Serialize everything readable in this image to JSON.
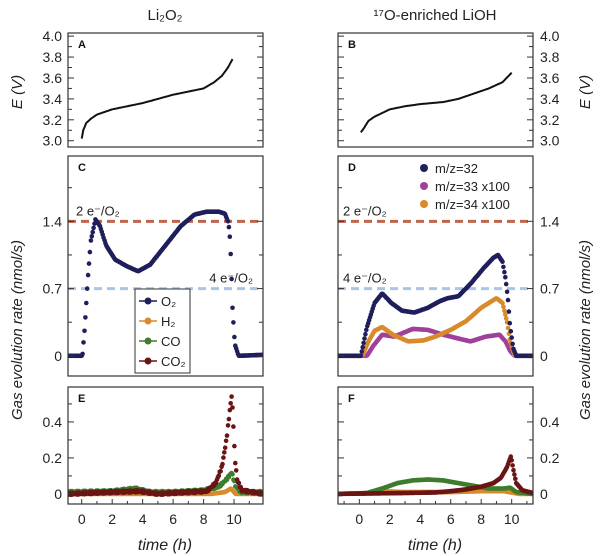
{
  "figure": {
    "titles": [
      "Li₂O₂",
      "¹⁷O-enriched LiOH"
    ],
    "ylabel_potential": "E (V)",
    "ylabel_gas": "Gas evolution rate (nmol/s)",
    "xlabel": "time (h)",
    "xticks": [
      "0",
      "2",
      "4",
      "6",
      "8",
      "10"
    ]
  },
  "chart_data": [
    {
      "id": "A",
      "panel_label": "A",
      "type": "line",
      "ylabel": "E (V)",
      "ylim": [
        2.94,
        4.03
      ],
      "xlim": [
        -0.9,
        11.9
      ],
      "yticks": [
        "3.0",
        "3.2",
        "3.4",
        "3.6",
        "3.8",
        "4.0"
      ],
      "series": [
        {
          "name": "E",
          "color": "#111111",
          "points": [
            [
              0,
              3.02
            ],
            [
              0.1,
              3.1
            ],
            [
              0.3,
              3.17
            ],
            [
              0.6,
              3.21
            ],
            [
              1,
              3.25
            ],
            [
              2,
              3.3
            ],
            [
              3,
              3.33
            ],
            [
              4,
              3.36
            ],
            [
              5,
              3.4
            ],
            [
              6,
              3.44
            ],
            [
              7,
              3.47
            ],
            [
              8,
              3.5
            ],
            [
              8.7,
              3.56
            ],
            [
              9.2,
              3.62
            ],
            [
              9.6,
              3.7
            ],
            [
              9.9,
              3.78
            ]
          ]
        }
      ]
    },
    {
      "id": "B",
      "panel_label": "B",
      "type": "line",
      "ylabel": "E (V)",
      "ylim": [
        2.94,
        4.03
      ],
      "xlim": [
        -1.4,
        11.4
      ],
      "yticks": [
        "3.0",
        "3.2",
        "3.4",
        "3.6",
        "3.8",
        "4.0"
      ],
      "series": [
        {
          "name": "E",
          "color": "#111111",
          "points": [
            [
              0.1,
              3.08
            ],
            [
              0.3,
              3.12
            ],
            [
              0.6,
              3.19
            ],
            [
              1,
              3.23
            ],
            [
              2,
              3.3
            ],
            [
              3,
              3.33
            ],
            [
              4,
              3.35
            ],
            [
              5.5,
              3.37
            ],
            [
              6.5,
              3.4
            ],
            [
              7.5,
              3.45
            ],
            [
              8.5,
              3.5
            ],
            [
              9.4,
              3.56
            ],
            [
              10,
              3.65
            ]
          ]
        }
      ]
    },
    {
      "id": "C",
      "panel_label": "C",
      "type": "scatter",
      "ylabel": "Gas evolution rate (nmol/s)",
      "ylim": [
        -0.21,
        2.08
      ],
      "xlim": [
        -0.9,
        11.9
      ],
      "yticks": [
        "0",
        "0.7",
        "1.4"
      ],
      "minor_step": 0.35,
      "hlines": [
        {
          "label": "2 e⁻/O₂",
          "value": 1.4,
          "color": "#c0644c"
        },
        {
          "label": "4 e⁻/O₂",
          "value": 0.7,
          "color": "#a9c6e6"
        }
      ],
      "legend": {
        "placement": "bottom-center",
        "style": "line-marker",
        "entries": [
          {
            "label": "O₂",
            "color": "#1f1f5c"
          },
          {
            "label": "H₂",
            "color": "#d98a2b"
          },
          {
            "label": "CO",
            "color": "#3d7d2c"
          },
          {
            "label": "CO₂",
            "color": "#6b1414"
          }
        ]
      },
      "series": [
        {
          "name": "O₂",
          "color": "#1f1f5c",
          "points": [
            [
              -0.9,
              0.0
            ],
            [
              0.05,
              0.0
            ],
            [
              0.2,
              0.3
            ],
            [
              0.4,
              0.8
            ],
            [
              0.6,
              1.2
            ],
            [
              0.9,
              1.42
            ],
            [
              1.2,
              1.35
            ],
            [
              1.6,
              1.15
            ],
            [
              2.2,
              1.0
            ],
            [
              3,
              0.93
            ],
            [
              3.7,
              0.88
            ],
            [
              4.5,
              0.95
            ],
            [
              5.5,
              1.15
            ],
            [
              6.5,
              1.35
            ],
            [
              7.4,
              1.47
            ],
            [
              8.2,
              1.5
            ],
            [
              9,
              1.5
            ],
            [
              9.4,
              1.48
            ],
            [
              9.6,
              1.4
            ],
            [
              9.7,
              1.3
            ],
            [
              9.8,
              1.0
            ],
            [
              9.9,
              0.5
            ],
            [
              10.05,
              0.12
            ],
            [
              10.3,
              0.0
            ],
            [
              11.9,
              0.01
            ]
          ]
        }
      ]
    },
    {
      "id": "D",
      "panel_label": "D",
      "type": "scatter",
      "ylabel": "Gas evolution rate (nmol/s)",
      "ylim": [
        -0.21,
        2.08
      ],
      "xlim": [
        -1.4,
        11.4
      ],
      "yticks": [
        "0",
        "0.7",
        "1.4"
      ],
      "minor_step": 0.35,
      "hlines": [
        {
          "label": "2 e⁻/O₂",
          "value": 1.4,
          "color": "#c0644c"
        },
        {
          "label": "4 e⁻/O₂",
          "value": 0.7,
          "color": "#a9c6e6"
        }
      ],
      "legend": {
        "placement": "top-center",
        "style": "marker",
        "entries": [
          {
            "label": "m/z=32",
            "color": "#1f1f5c"
          },
          {
            "label": "m/z=33 x100",
            "color": "#a1409b"
          },
          {
            "label": "m/z=34 x100",
            "color": "#d98a2b"
          }
        ]
      },
      "series": [
        {
          "name": "m/z=33 x100",
          "color": "#a1409b",
          "points": [
            [
              -1.4,
              0.0
            ],
            [
              0.5,
              0.0
            ],
            [
              0.9,
              0.1
            ],
            [
              1.5,
              0.22
            ],
            [
              2.3,
              0.2
            ],
            [
              3.5,
              0.28
            ],
            [
              4.5,
              0.27
            ],
            [
              5.5,
              0.22
            ],
            [
              6.5,
              0.18
            ],
            [
              7.3,
              0.15
            ],
            [
              8.3,
              0.2
            ],
            [
              9.2,
              0.22
            ],
            [
              9.6,
              0.15
            ],
            [
              9.9,
              0.05
            ],
            [
              10.2,
              0.0
            ],
            [
              11.4,
              0.0
            ]
          ]
        },
        {
          "name": "m/z=34 x100",
          "color": "#d98a2b",
          "points": [
            [
              -1.4,
              0.0
            ],
            [
              0.2,
              0.0
            ],
            [
              0.6,
              0.15
            ],
            [
              1.0,
              0.26
            ],
            [
              1.5,
              0.3
            ],
            [
              2.2,
              0.22
            ],
            [
              3.2,
              0.15
            ],
            [
              4.2,
              0.16
            ],
            [
              5,
              0.2
            ],
            [
              6,
              0.27
            ],
            [
              7,
              0.36
            ],
            [
              8,
              0.5
            ],
            [
              9,
              0.6
            ],
            [
              9.4,
              0.55
            ],
            [
              9.7,
              0.35
            ],
            [
              9.9,
              0.15
            ],
            [
              10.2,
              0.0
            ],
            [
              11.4,
              0.0
            ]
          ]
        },
        {
          "name": "m/z=32",
          "color": "#1f1f5c",
          "points": [
            [
              -1.4,
              0.0
            ],
            [
              0.1,
              0.0
            ],
            [
              0.5,
              0.3
            ],
            [
              1.0,
              0.55
            ],
            [
              1.5,
              0.65
            ],
            [
              2.1,
              0.55
            ],
            [
              2.8,
              0.47
            ],
            [
              3.6,
              0.45
            ],
            [
              4.5,
              0.5
            ],
            [
              5.3,
              0.57
            ],
            [
              5.8,
              0.6
            ],
            [
              6.5,
              0.62
            ],
            [
              7.3,
              0.75
            ],
            [
              8.2,
              0.92
            ],
            [
              8.8,
              1.02
            ],
            [
              9.1,
              1.05
            ],
            [
              9.4,
              0.98
            ],
            [
              9.6,
              0.8
            ],
            [
              9.75,
              0.6
            ],
            [
              9.9,
              0.3
            ],
            [
              10.1,
              0.08
            ],
            [
              10.3,
              0.0
            ],
            [
              11.4,
              0.0
            ]
          ]
        }
      ]
    },
    {
      "id": "E",
      "panel_label": "E",
      "type": "scatter",
      "ylabel": "Gas evolution rate (nmol/s)",
      "ylim": [
        -0.056,
        0.594
      ],
      "xlim": [
        -0.9,
        11.9
      ],
      "yticks": [
        "0",
        "0.2",
        "0.4"
      ],
      "minor_step": 0.1,
      "series": [
        {
          "name": "H₂",
          "color": "#d98a2b",
          "points": [
            [
              -0.9,
              0.0
            ],
            [
              8.5,
              0.0
            ],
            [
              9.4,
              0.01
            ],
            [
              9.8,
              0.03
            ],
            [
              10.1,
              0.0
            ],
            [
              11.9,
              0.0
            ]
          ]
        },
        {
          "name": "CO",
          "color": "#3d7d2c",
          "points": [
            [
              -0.9,
              0.01
            ],
            [
              2,
              0.015
            ],
            [
              3.5,
              0.03
            ],
            [
              4.5,
              0.01
            ],
            [
              6,
              0.01
            ],
            [
              8,
              0.02
            ],
            [
              9,
              0.04
            ],
            [
              9.5,
              0.08
            ],
            [
              9.85,
              0.12
            ],
            [
              10.1,
              0.04
            ],
            [
              10.5,
              0.01
            ],
            [
              11.9,
              0.01
            ]
          ]
        },
        {
          "name": "CO₂",
          "color": "#6b1414",
          "points": [
            [
              -0.9,
              0.0
            ],
            [
              2,
              0.01
            ],
            [
              3.8,
              0.015
            ],
            [
              5,
              0.0
            ],
            [
              7,
              0.01
            ],
            [
              8.2,
              0.015
            ],
            [
              8.8,
              0.06
            ],
            [
              9.2,
              0.15
            ],
            [
              9.5,
              0.3
            ],
            [
              9.7,
              0.45
            ],
            [
              9.85,
              0.55
            ],
            [
              9.95,
              0.4
            ],
            [
              10.05,
              0.2
            ],
            [
              10.2,
              0.08
            ],
            [
              10.5,
              0.02
            ],
            [
              11.9,
              0.0
            ]
          ]
        }
      ]
    },
    {
      "id": "F",
      "panel_label": "F",
      "type": "scatter",
      "ylabel": "Gas evolution rate (nmol/s)",
      "ylim": [
        -0.056,
        0.594
      ],
      "xlim": [
        -1.4,
        11.4
      ],
      "yticks": [
        "0",
        "0.2",
        "0.4"
      ],
      "minor_step": 0.1,
      "series": [
        {
          "name": "H₂",
          "color": "#d98a2b",
          "points": [
            [
              -1.4,
              0.0
            ],
            [
              1,
              0.005
            ],
            [
              1.5,
              0.015
            ],
            [
              3,
              0.01
            ],
            [
              6,
              0.01
            ],
            [
              8,
              0.015
            ],
            [
              9.5,
              0.015
            ],
            [
              10.5,
              0.0
            ],
            [
              11.4,
              0.0
            ]
          ]
        },
        {
          "name": "CO",
          "color": "#3d7d2c",
          "points": [
            [
              -1.4,
              0.0
            ],
            [
              0.5,
              0.005
            ],
            [
              1.5,
              0.03
            ],
            [
              2.5,
              0.06
            ],
            [
              3.5,
              0.075
            ],
            [
              4.5,
              0.08
            ],
            [
              5.5,
              0.075
            ],
            [
              6.5,
              0.06
            ],
            [
              7.5,
              0.045
            ],
            [
              8.5,
              0.03
            ],
            [
              9.5,
              0.03
            ],
            [
              9.9,
              0.035
            ],
            [
              10.3,
              0.01
            ],
            [
              11.4,
              0.0
            ]
          ]
        },
        {
          "name": "CO₂",
          "color": "#6b1414",
          "points": [
            [
              -1.4,
              0.0
            ],
            [
              3,
              0.005
            ],
            [
              5,
              0.008
            ],
            [
              6,
              0.015
            ],
            [
              7,
              0.025
            ],
            [
              8,
              0.04
            ],
            [
              8.8,
              0.06
            ],
            [
              9.3,
              0.09
            ],
            [
              9.7,
              0.15
            ],
            [
              9.95,
              0.21
            ],
            [
              10.1,
              0.14
            ],
            [
              10.3,
              0.06
            ],
            [
              10.7,
              0.02
            ],
            [
              11.4,
              0.005
            ]
          ]
        }
      ]
    }
  ]
}
